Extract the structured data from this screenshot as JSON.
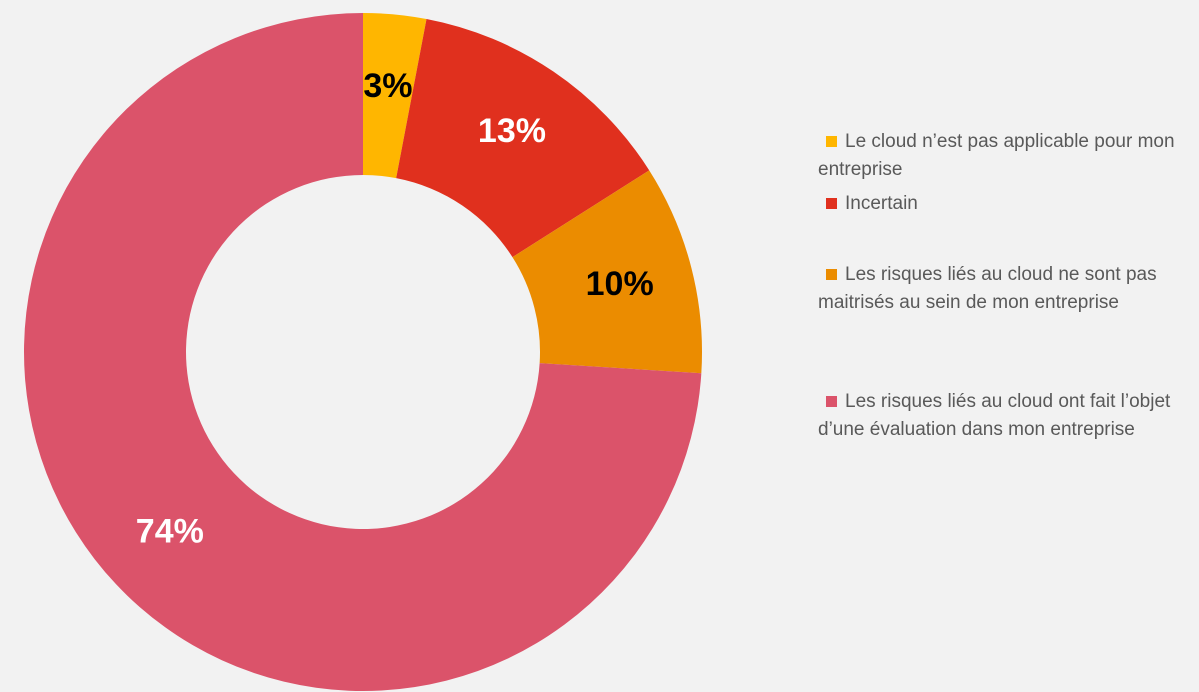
{
  "chart_data": {
    "type": "donut",
    "categories": [
      "Le cloud n’est pas applicable pour mon entreprise",
      "Incertain",
      "Les risques liés au cloud ne sont pas maitrisés au sein de mon entreprise",
      "Les risques liés au cloud ont fait l’objet d’une évaluation dans mon entreprise"
    ],
    "values": [
      3,
      13,
      10,
      74
    ],
    "value_labels": [
      "3%",
      "13%",
      "10%",
      "74%"
    ],
    "colors": [
      "#ffb600",
      "#e0301e",
      "#eb8c00",
      "#db536a"
    ],
    "legend": "right"
  }
}
